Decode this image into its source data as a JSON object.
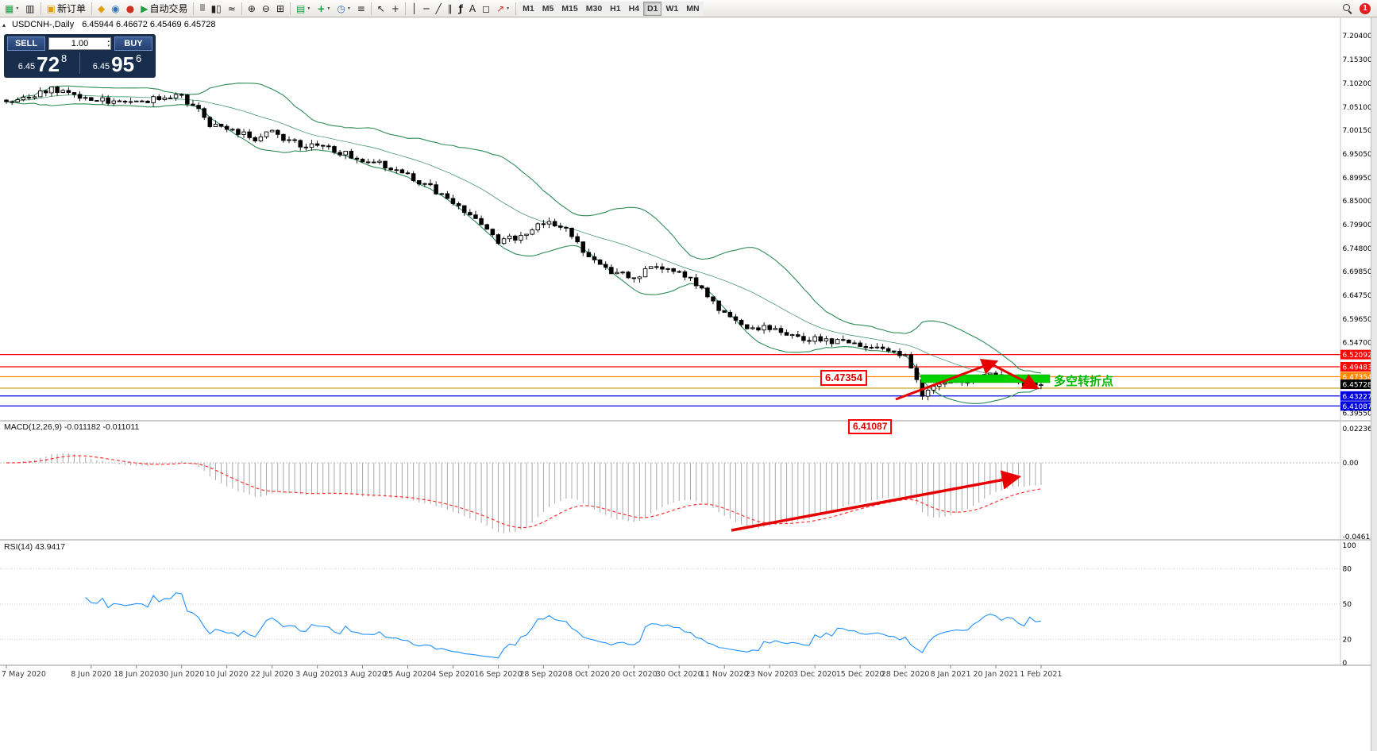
{
  "window": {
    "collapse_icon": "▴",
    "title_symbol": "USDCNH-,Daily",
    "title_ohlc": "6.45944 6.46672 6.45469 6.45728"
  },
  "colors": {
    "band_green": "#2e8b57",
    "annotation_red": "#e60000",
    "highlight_green": "#00d200",
    "rsi_blue": "#1e90ff",
    "macd_signal": "#ff3333",
    "hist_silver": "#a8a8a8",
    "current_tag": "#000000"
  },
  "toolbar": {
    "new_order": "新订单",
    "autotrade": "自动交易",
    "timeframes": [
      "M1",
      "M5",
      "M15",
      "M30",
      "H1",
      "H4",
      "D1",
      "W1",
      "MN"
    ],
    "active_timeframe": "D1",
    "notification": "1"
  },
  "icons": {
    "caret": "▼",
    "new_chart": "▦",
    "profiles": "▥",
    "new_order": "▣",
    "mql5": "◆",
    "community": "◉",
    "signals": "●",
    "autotrade": "▶",
    "bars": "|||",
    "candles": "▮▯",
    "linechart": "≈",
    "zoom_in": "⊕",
    "zoom_out": "⊖",
    "tile": "⊞",
    "ind_templates": "▤",
    "ind_add": "+",
    "clock": "◷",
    "settings": "≡",
    "cursor": "↖",
    "crosshair": "+",
    "vline": "│",
    "hline": "─",
    "trendline": "╱",
    "channel": "∥",
    "fibo": "ƒ",
    "text_tool": "A",
    "label_tool": "◻",
    "arrow_tool": "↗"
  },
  "trade_panel": {
    "sell": "SELL",
    "buy": "BUY",
    "volume": "1.00",
    "spin_up": "▴",
    "spin_down": "▾",
    "bid_small": "6.45",
    "bid_big": "72",
    "bid_sup": "8",
    "ask_small": "6.45",
    "ask_big": "95",
    "ask_sup": "6"
  },
  "price_axis": {
    "texts": [
      "7.20400",
      "7.15300",
      "7.10200",
      "7.05100",
      "7.00150",
      "6.95050",
      "6.89950",
      "6.85000",
      "6.79900",
      "6.74800",
      "6.69850",
      "6.64750",
      "6.59650",
      "6.54700",
      "6.39550"
    ],
    "prices": [
      7.204,
      7.153,
      7.102,
      7.051,
      7.0015,
      6.9505,
      6.8995,
      6.85,
      6.799,
      6.748,
      6.6985,
      6.6475,
      6.5965,
      6.547,
      6.3955
    ]
  },
  "levels": [
    {
      "price": 6.52092,
      "label": "6.52092",
      "color": "#ff0000",
      "tag": true
    },
    {
      "price": 6.49483,
      "label": "6.49483",
      "color": "#ff0000",
      "tag": true
    },
    {
      "price": 6.47354,
      "label": "6.47354",
      "color": "#ff8a00",
      "tag": true
    },
    {
      "price": 6.449,
      "label": "",
      "color": "#c29b00",
      "tag": false
    },
    {
      "price": 6.43227,
      "label": "6.43227",
      "color": "#0000e0",
      "tag": true
    },
    {
      "price": 6.41087,
      "label": "6.41087",
      "color": "#0000e0",
      "tag": true
    }
  ],
  "current_price": {
    "text": "6.45728",
    "price": 6.45728
  },
  "annotations": {
    "res_box": "6.47354",
    "sup_box": "6.41087",
    "turning_text": "多空转折点"
  },
  "macd_panel": {
    "title": "MACD(12,26,9) -0.011182 -0.011011",
    "axis_top": "0.022362",
    "axis_zero": "0.00",
    "axis_bottom": "-0.046165"
  },
  "rsi_panel": {
    "title": "RSI(14) 43.9417",
    "axis_texts": [
      "100",
      "80",
      "50",
      "20",
      "0"
    ],
    "axis_values": [
      100,
      80,
      50,
      20,
      0
    ],
    "level_lines": [
      80,
      50,
      20
    ]
  },
  "chart_data": [
    {
      "type": "candlestick",
      "symbol": "USDCNH",
      "timeframe": "Daily",
      "title": "USDCNH-,Daily",
      "ohlc_current": {
        "open": 6.45944,
        "high": 6.46672,
        "low": 6.45469,
        "close": 6.45728
      },
      "ylim": [
        6.3825,
        7.17
      ],
      "candle_count": 184,
      "date_ticks": [
        "7 May 2020",
        "8 Jun 2020",
        "18 Jun 2020",
        "30 Jun 2020",
        "10 Jul 2020",
        "22 Jul 2020",
        "3 Aug 2020",
        "13 Aug 2020",
        "25 Aug 2020",
        "4 Sep 2020",
        "16 Sep 2020",
        "28 Sep 2020",
        "8 Oct 2020",
        "20 Oct 2020",
        "30 Oct 2020",
        "11 Nov 2020",
        "23 Nov 2020",
        "3 Dec 2020",
        "15 Dec 2020",
        "28 Dec 2020",
        "8 Jan 2021",
        "20 Jan 2021",
        "1 Feb 2021"
      ],
      "tick_indices": [
        0,
        15,
        23,
        31,
        39,
        47,
        55,
        63,
        71,
        79,
        87,
        95,
        103,
        111,
        119,
        127,
        135,
        143,
        151,
        159,
        167,
        175,
        183
      ],
      "waypoints": {
        "indices": [
          0,
          8,
          15,
          23,
          28,
          31,
          34,
          36,
          39,
          44,
          47,
          52,
          55,
          59,
          63,
          67,
          71,
          75,
          79,
          83,
          87,
          91,
          95,
          99,
          103,
          107,
          111,
          115,
          119,
          123,
          127,
          131,
          135,
          139,
          143,
          147,
          151,
          155,
          159,
          162,
          164,
          167,
          171,
          175,
          179,
          183
        ],
        "closes": [
          7.065,
          7.088,
          7.068,
          7.058,
          7.075,
          7.072,
          7.045,
          7.012,
          7.002,
          6.985,
          6.995,
          6.97,
          6.968,
          6.955,
          6.94,
          6.925,
          6.905,
          6.88,
          6.845,
          6.815,
          6.765,
          6.772,
          6.805,
          6.79,
          6.725,
          6.7,
          6.685,
          6.712,
          6.7,
          6.66,
          6.605,
          6.582,
          6.578,
          6.56,
          6.553,
          6.55,
          6.538,
          6.53,
          6.52,
          6.437,
          6.452,
          6.458,
          6.47,
          6.478,
          6.462,
          6.457
        ]
      },
      "indicators": [
        "Bollinger Bands (green)",
        "MACD(12,26,9)",
        "RSI(14)"
      ],
      "key_levels": [
        6.52092,
        6.49483,
        6.47354,
        6.449,
        6.43227,
        6.41087
      ]
    },
    {
      "type": "bar",
      "name": "MACD(12,26,9)",
      "current_macd": -0.011182,
      "current_signal": -0.011011,
      "axis_range": [
        -0.046165,
        0.022362
      ]
    },
    {
      "type": "line",
      "name": "RSI(14)",
      "current_value": 43.9417,
      "axis_range": [
        0,
        100
      ],
      "visible_levels": [
        100,
        80,
        50,
        20,
        0
      ]
    }
  ]
}
